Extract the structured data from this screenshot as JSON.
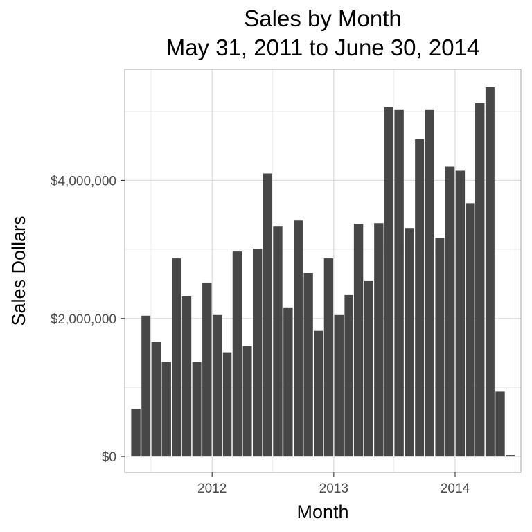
{
  "chart_data": {
    "type": "bar",
    "title": "Sales by Month",
    "subtitle": "May 31, 2011 to  June 30, 2014",
    "xlabel": "Month",
    "ylabel": "Sales Dollars",
    "x_dates": [
      "2011-05",
      "2011-06",
      "2011-07",
      "2011-08",
      "2011-09",
      "2011-10",
      "2011-11",
      "2011-12",
      "2012-01",
      "2012-02",
      "2012-03",
      "2012-04",
      "2012-05",
      "2012-06",
      "2012-07",
      "2012-08",
      "2012-09",
      "2012-10",
      "2012-11",
      "2012-12",
      "2013-01",
      "2013-02",
      "2013-03",
      "2013-04",
      "2013-05",
      "2013-06",
      "2013-07",
      "2013-08",
      "2013-09",
      "2013-10",
      "2013-11",
      "2013-12",
      "2014-01",
      "2014-02",
      "2014-03",
      "2014-04",
      "2014-05",
      "2014-06"
    ],
    "values": [
      690000,
      2040000,
      1660000,
      1370000,
      2870000,
      2320000,
      1370000,
      2520000,
      2050000,
      1510000,
      2970000,
      1600000,
      3010000,
      4100000,
      3340000,
      2160000,
      3420000,
      2660000,
      1820000,
      2870000,
      2050000,
      2340000,
      3370000,
      2550000,
      3380000,
      5060000,
      5020000,
      3310000,
      4600000,
      5020000,
      3170000,
      4200000,
      4140000,
      3670000,
      5120000,
      5350000,
      940000,
      20000
    ],
    "ylim": [
      -230000,
      5610000
    ],
    "yticks": [
      0,
      2000000,
      4000000
    ],
    "ytick_labels": [
      "$0",
      "$2,000,000",
      "$4,000,000"
    ],
    "xticks": [
      "2012-01",
      "2013-01",
      "2014-01"
    ],
    "xtick_labels": [
      "2012",
      "2013",
      "2014"
    ],
    "xlim": [
      "2011-04-13",
      "2014-07-18"
    ],
    "grid": true,
    "colors": {
      "bar": "#474747",
      "grid_major": "#d9d9d9",
      "grid_minor": "#ececec",
      "panel_border": "#b3b3b3",
      "tick_text": "#4d4d4d"
    }
  }
}
